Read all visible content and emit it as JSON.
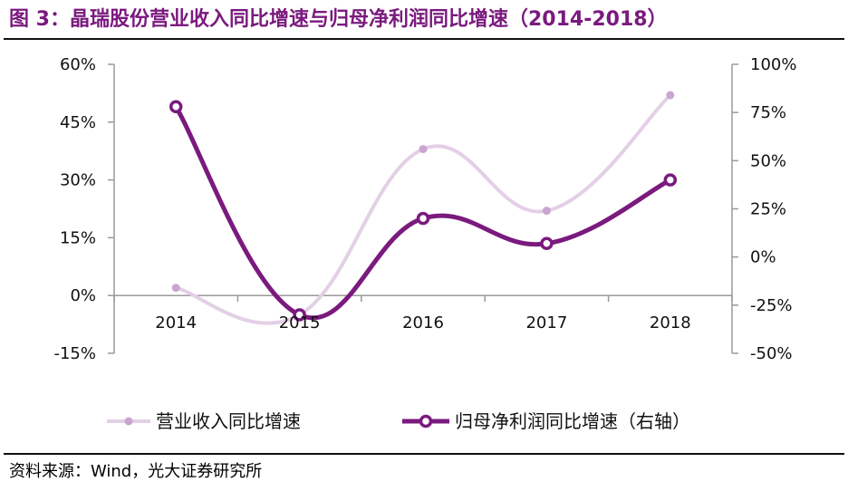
{
  "title": "图 3：晶瑞股份营业收入同比增速与归母净利润同比增速（2014-2018）",
  "source": "资料来源：Wind，光大证券研究所",
  "chart_data": {
    "type": "line",
    "categories": [
      "2014",
      "2015",
      "2016",
      "2017",
      "2018"
    ],
    "y_left": {
      "range": [
        -15,
        60
      ],
      "ticks": [
        "-15%",
        "0%",
        "15%",
        "30%",
        "45%",
        "60%"
      ],
      "tick_values": [
        -15,
        0,
        15,
        30,
        45,
        60
      ]
    },
    "y_right": {
      "range": [
        -50,
        100
      ],
      "ticks": [
        "-50%",
        "-25%",
        "0%",
        "25%",
        "50%",
        "75%",
        "100%"
      ],
      "tick_values": [
        -50,
        -25,
        0,
        25,
        50,
        75,
        100
      ]
    },
    "series": [
      {
        "name": "营业收入同比增速",
        "axis": "left",
        "values": [
          2,
          -5,
          38,
          22,
          52
        ],
        "color": "#e3cfe6",
        "style": "smooth-line, small markers"
      },
      {
        "name": "归母净利润同比增速（右轴）",
        "axis": "right",
        "values": [
          78,
          -30,
          20,
          7,
          40
        ],
        "color": "#7a1a7e",
        "style": "smooth-line, ring markers"
      }
    ],
    "grid": false,
    "legend_position": "bottom"
  }
}
